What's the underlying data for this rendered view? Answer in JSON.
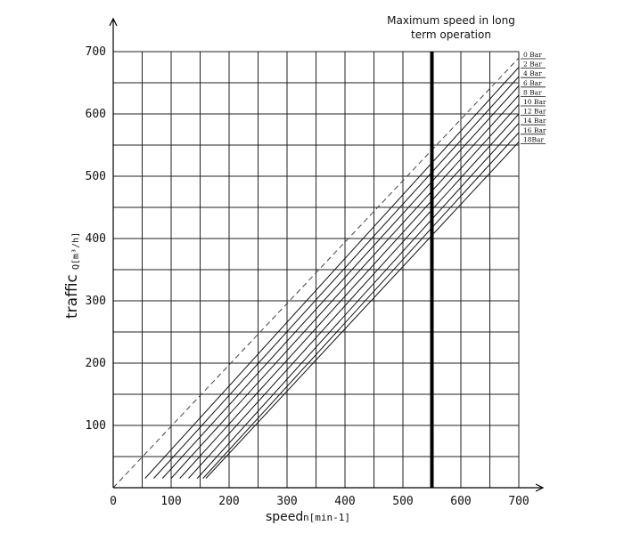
{
  "chart_data": {
    "type": "line",
    "title": "",
    "xlabel": {
      "main": "speed",
      "unit": "n[min-1]"
    },
    "ylabel": {
      "main": "traffic",
      "unit": "Q[m³/h]"
    },
    "xlim": [
      0,
      700
    ],
    "ylim": [
      0,
      700
    ],
    "xticks": [
      0,
      100,
      200,
      300,
      400,
      500,
      600,
      700
    ],
    "yticks": [
      100,
      200,
      300,
      400,
      500,
      600,
      700
    ],
    "grid": true,
    "annotation": {
      "line1": "Maximum speed in long",
      "line2": "term operation"
    },
    "max_speed_line": 550,
    "series": [
      {
        "name": "0 Bar",
        "x": [
          0,
          700
        ],
        "y": [
          0,
          690
        ],
        "style": "dashed"
      },
      {
        "name": "2 Bar",
        "x": [
          55,
          700
        ],
        "y": [
          15,
          675
        ]
      },
      {
        "name": "4 Bar",
        "x": [
          70,
          700
        ],
        "y": [
          15,
          660
        ]
      },
      {
        "name": "6 Bar",
        "x": [
          85,
          700
        ],
        "y": [
          15,
          645
        ]
      },
      {
        "name": "8 Bar",
        "x": [
          100,
          700
        ],
        "y": [
          15,
          630
        ]
      },
      {
        "name": "10 Bar",
        "x": [
          115,
          700
        ],
        "y": [
          15,
          615
        ]
      },
      {
        "name": "12 Bar",
        "x": [
          130,
          700
        ],
        "y": [
          15,
          600
        ]
      },
      {
        "name": "14 Bar",
        "x": [
          145,
          700
        ],
        "y": [
          15,
          585
        ]
      },
      {
        "name": "16 Bar",
        "x": [
          155,
          700
        ],
        "y": [
          15,
          570
        ]
      },
      {
        "name": "18Bar",
        "x": [
          160,
          700
        ],
        "y": [
          15,
          555
        ]
      }
    ]
  }
}
